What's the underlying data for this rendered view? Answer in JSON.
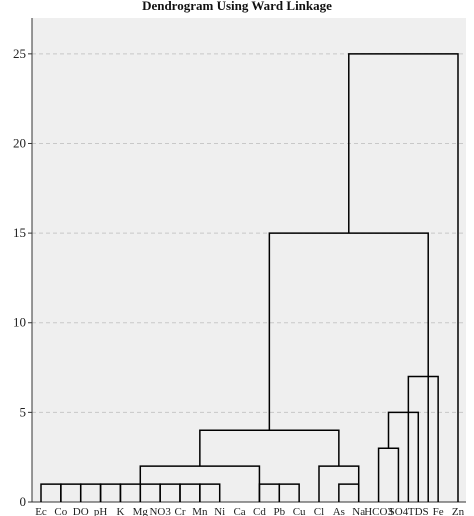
{
  "chart_data": {
    "type": "dendrogram",
    "title": "Dendrogram Using Ward Linkage",
    "xlabel": "",
    "ylabel": "",
    "ylim": [
      0,
      27
    ],
    "y_ticks": [
      0,
      5,
      10,
      15,
      20,
      25
    ],
    "grid": true,
    "leaves": [
      "Ec",
      "Co",
      "DO",
      "pH",
      "K",
      "Mg",
      "NO3",
      "Cr",
      "Mn",
      "Ni",
      "Ca",
      "Cd",
      "Pb",
      "Cu",
      "Cl",
      "As",
      "Na",
      "HCO3",
      "SO4",
      "TDS",
      "Fe",
      "Zn"
    ],
    "links": [
      {
        "left": 0,
        "right": 1,
        "height": 1.0
      },
      {
        "left": 1,
        "right": 2,
        "height": 1.0
      },
      {
        "left": 2,
        "right": 3,
        "height": 1.0
      },
      {
        "left": 3,
        "right": 4,
        "height": 1.0
      },
      {
        "left": 4,
        "right": 5,
        "height": 1.0
      },
      {
        "left": 5,
        "right": 6,
        "height": 1.0
      },
      {
        "left": 6,
        "right": 7,
        "height": 1.0
      },
      {
        "left": 7,
        "right": 8,
        "height": 1.0
      },
      {
        "left": 8,
        "right": 9,
        "height": 1.0
      },
      {
        "left": 11,
        "right": 12,
        "height": 1.0
      },
      {
        "left": 12,
        "right": 13,
        "height": 1.0
      },
      {
        "left": 15,
        "right": 16,
        "height": 1.0
      },
      {
        "left": 5,
        "right": 11,
        "height": 2.0
      },
      {
        "left": 14,
        "right": 16,
        "height": 2.0
      },
      {
        "left": 8,
        "right": 15,
        "height": 4.0
      },
      {
        "left": 17,
        "right": 18,
        "height": 3.0
      },
      {
        "left": 17.5,
        "right": 19,
        "height": 5.0
      },
      {
        "left": 18.5,
        "right": 20,
        "height": 7.0
      },
      {
        "left": 11.5,
        "right": 19.5,
        "height": 15.0
      },
      {
        "left": 15.5,
        "right": 21,
        "height": 25.0
      }
    ]
  }
}
